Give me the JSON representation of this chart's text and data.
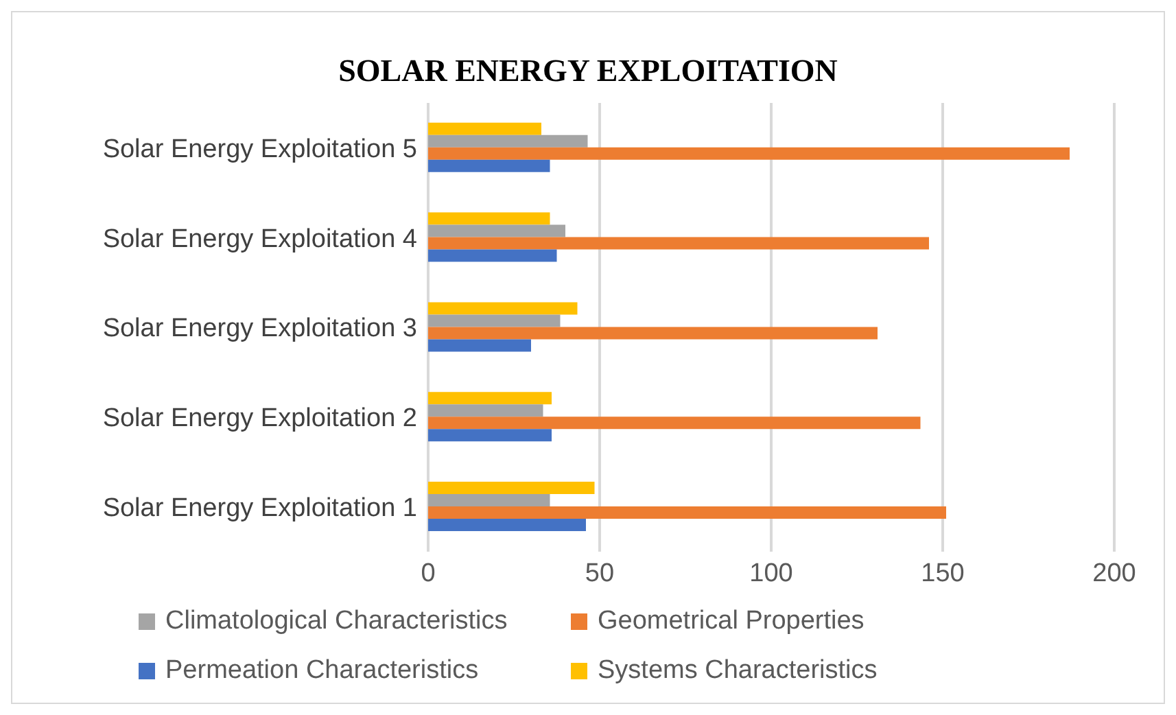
{
  "chart_data": {
    "type": "bar",
    "orientation": "horizontal",
    "title": "SOLAR ENERGY EXPLOITATION",
    "categories": [
      "Solar Energy Exploitation 5",
      "Solar Energy Exploitation 4",
      "Solar Energy Exploitation 3",
      "Solar Energy Exploitation 2",
      "Solar Energy Exploitation 1"
    ],
    "series": [
      {
        "name": "Systems Characteristics",
        "color": "#ffc000",
        "values": [
          33,
          35.5,
          43.5,
          36,
          48.5
        ]
      },
      {
        "name": "Climatological Characteristics",
        "color": "#a5a5a5",
        "values": [
          46.5,
          40,
          38.5,
          33.5,
          35.5
        ]
      },
      {
        "name": "Geometrical Properties",
        "color": "#ed7d31",
        "values": [
          187,
          146,
          131,
          143.5,
          151
        ]
      },
      {
        "name": "Permeation Characteristics",
        "color": "#4472c4",
        "values": [
          35.5,
          37.5,
          30,
          36,
          46
        ]
      }
    ],
    "xlim": [
      0,
      200
    ],
    "xticks": [
      0,
      50,
      100,
      150,
      200
    ],
    "grid": "x",
    "legend": "bottom"
  }
}
